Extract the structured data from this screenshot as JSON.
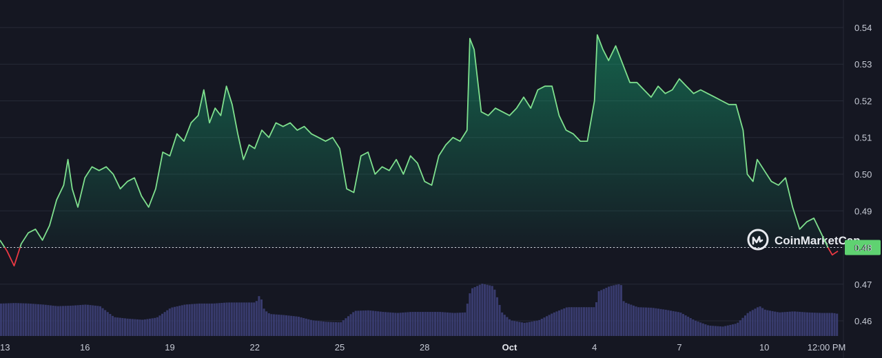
{
  "chart_data": {
    "type": "area",
    "colors": {
      "up": "#16c784",
      "line": "#7fe08e",
      "down": "#ea3943",
      "volume": "#3a3d72",
      "background": "#151722",
      "grid": "#262a37",
      "price_tag": "#5fd271"
    },
    "y_ticks": [
      0.46,
      0.47,
      0.48,
      0.49,
      0.5,
      0.51,
      0.52,
      0.53,
      0.54
    ],
    "y_tick_labels": [
      "0.46",
      "0.47",
      "0.48",
      "0.49",
      "0.50",
      "0.51",
      "0.52",
      "0.53",
      "0.54"
    ],
    "ylim": [
      0.4555,
      0.5475
    ],
    "xlim": [
      0,
      29.6
    ],
    "x_ticks": [
      {
        "t": 0.0,
        "label": "13"
      },
      {
        "t": 3.0,
        "label": "16"
      },
      {
        "t": 6.0,
        "label": "19"
      },
      {
        "t": 9.0,
        "label": "22"
      },
      {
        "t": 12.0,
        "label": "25"
      },
      {
        "t": 15.0,
        "label": "28"
      },
      {
        "t": 18.0,
        "label": "Oct",
        "bold": true
      },
      {
        "t": 21.0,
        "label": "4"
      },
      {
        "t": 24.0,
        "label": "7"
      },
      {
        "t": 27.0,
        "label": "10"
      },
      {
        "t": 29.2,
        "label": "12:00 PM"
      }
    ],
    "baseline": 0.48,
    "current_price_label": "0.48",
    "watermark": "CoinMarketCap",
    "price": [
      [
        0.0,
        0.482
      ],
      [
        0.25,
        0.479
      ],
      [
        0.5,
        0.475
      ],
      [
        0.75,
        0.481
      ],
      [
        1.0,
        0.484
      ],
      [
        1.25,
        0.485
      ],
      [
        1.5,
        0.482
      ],
      [
        1.75,
        0.486
      ],
      [
        2.0,
        0.493
      ],
      [
        2.25,
        0.497
      ],
      [
        2.4,
        0.504
      ],
      [
        2.55,
        0.496
      ],
      [
        2.75,
        0.491
      ],
      [
        3.0,
        0.499
      ],
      [
        3.25,
        0.502
      ],
      [
        3.5,
        0.501
      ],
      [
        3.75,
        0.502
      ],
      [
        4.0,
        0.5
      ],
      [
        4.25,
        0.496
      ],
      [
        4.5,
        0.498
      ],
      [
        4.75,
        0.499
      ],
      [
        5.0,
        0.494
      ],
      [
        5.25,
        0.491
      ],
      [
        5.5,
        0.496
      ],
      [
        5.75,
        0.506
      ],
      [
        6.0,
        0.505
      ],
      [
        6.25,
        0.511
      ],
      [
        6.5,
        0.509
      ],
      [
        6.75,
        0.514
      ],
      [
        7.0,
        0.516
      ],
      [
        7.2,
        0.523
      ],
      [
        7.4,
        0.514
      ],
      [
        7.6,
        0.518
      ],
      [
        7.8,
        0.516
      ],
      [
        8.0,
        0.524
      ],
      [
        8.2,
        0.519
      ],
      [
        8.4,
        0.511
      ],
      [
        8.6,
        0.504
      ],
      [
        8.8,
        0.508
      ],
      [
        9.0,
        0.507
      ],
      [
        9.25,
        0.512
      ],
      [
        9.5,
        0.51
      ],
      [
        9.75,
        0.514
      ],
      [
        10.0,
        0.513
      ],
      [
        10.25,
        0.514
      ],
      [
        10.5,
        0.512
      ],
      [
        10.75,
        0.513
      ],
      [
        11.0,
        0.511
      ],
      [
        11.25,
        0.51
      ],
      [
        11.5,
        0.509
      ],
      [
        11.75,
        0.51
      ],
      [
        12.0,
        0.507
      ],
      [
        12.25,
        0.496
      ],
      [
        12.5,
        0.495
      ],
      [
        12.75,
        0.505
      ],
      [
        13.0,
        0.506
      ],
      [
        13.25,
        0.5
      ],
      [
        13.5,
        0.502
      ],
      [
        13.75,
        0.501
      ],
      [
        14.0,
        0.504
      ],
      [
        14.25,
        0.5
      ],
      [
        14.5,
        0.505
      ],
      [
        14.75,
        0.503
      ],
      [
        15.0,
        0.498
      ],
      [
        15.25,
        0.497
      ],
      [
        15.5,
        0.505
      ],
      [
        15.75,
        0.508
      ],
      [
        16.0,
        0.51
      ],
      [
        16.25,
        0.509
      ],
      [
        16.5,
        0.512
      ],
      [
        16.6,
        0.537
      ],
      [
        16.75,
        0.534
      ],
      [
        17.0,
        0.517
      ],
      [
        17.25,
        0.516
      ],
      [
        17.5,
        0.518
      ],
      [
        17.75,
        0.517
      ],
      [
        18.0,
        0.516
      ],
      [
        18.25,
        0.518
      ],
      [
        18.5,
        0.521
      ],
      [
        18.75,
        0.518
      ],
      [
        19.0,
        0.523
      ],
      [
        19.25,
        0.524
      ],
      [
        19.5,
        0.524
      ],
      [
        19.75,
        0.516
      ],
      [
        20.0,
        0.512
      ],
      [
        20.25,
        0.511
      ],
      [
        20.5,
        0.509
      ],
      [
        20.75,
        0.509
      ],
      [
        21.0,
        0.52
      ],
      [
        21.1,
        0.538
      ],
      [
        21.3,
        0.534
      ],
      [
        21.5,
        0.531
      ],
      [
        21.75,
        0.535
      ],
      [
        22.0,
        0.53
      ],
      [
        22.25,
        0.525
      ],
      [
        22.5,
        0.525
      ],
      [
        22.75,
        0.523
      ],
      [
        23.0,
        0.521
      ],
      [
        23.25,
        0.524
      ],
      [
        23.5,
        0.522
      ],
      [
        23.75,
        0.523
      ],
      [
        24.0,
        0.526
      ],
      [
        24.25,
        0.524
      ],
      [
        24.5,
        0.522
      ],
      [
        24.75,
        0.523
      ],
      [
        25.0,
        0.522
      ],
      [
        25.25,
        0.521
      ],
      [
        25.5,
        0.52
      ],
      [
        25.75,
        0.519
      ],
      [
        26.0,
        0.519
      ],
      [
        26.25,
        0.512
      ],
      [
        26.4,
        0.5
      ],
      [
        26.6,
        0.498
      ],
      [
        26.75,
        0.504
      ],
      [
        27.0,
        0.501
      ],
      [
        27.25,
        0.498
      ],
      [
        27.5,
        0.497
      ],
      [
        27.75,
        0.499
      ],
      [
        28.0,
        0.491
      ],
      [
        28.25,
        0.485
      ],
      [
        28.5,
        0.487
      ],
      [
        28.75,
        0.488
      ],
      [
        29.0,
        0.484
      ],
      [
        29.25,
        0.48
      ],
      [
        29.4,
        0.478
      ],
      [
        29.6,
        0.479
      ]
    ],
    "volume": [
      [
        0.0,
        0.62
      ],
      [
        0.5,
        0.63
      ],
      [
        1.0,
        0.62
      ],
      [
        1.5,
        0.6
      ],
      [
        2.0,
        0.57
      ],
      [
        2.5,
        0.58
      ],
      [
        3.0,
        0.6
      ],
      [
        3.5,
        0.57
      ],
      [
        4.0,
        0.36
      ],
      [
        4.5,
        0.33
      ],
      [
        5.0,
        0.31
      ],
      [
        5.5,
        0.35
      ],
      [
        6.0,
        0.54
      ],
      [
        6.5,
        0.6
      ],
      [
        7.0,
        0.62
      ],
      [
        7.5,
        0.62
      ],
      [
        8.0,
        0.64
      ],
      [
        8.5,
        0.64
      ],
      [
        9.0,
        0.64
      ],
      [
        9.15,
        0.8
      ],
      [
        9.3,
        0.5
      ],
      [
        9.5,
        0.42
      ],
      [
        10.0,
        0.4
      ],
      [
        10.5,
        0.37
      ],
      [
        11.0,
        0.3
      ],
      [
        11.5,
        0.27
      ],
      [
        12.0,
        0.26
      ],
      [
        12.5,
        0.48
      ],
      [
        13.0,
        0.49
      ],
      [
        13.5,
        0.46
      ],
      [
        14.0,
        0.44
      ],
      [
        14.5,
        0.46
      ],
      [
        15.0,
        0.46
      ],
      [
        15.5,
        0.46
      ],
      [
        16.0,
        0.44
      ],
      [
        16.4,
        0.45
      ],
      [
        16.6,
        0.9
      ],
      [
        17.0,
        1.0
      ],
      [
        17.4,
        0.95
      ],
      [
        17.7,
        0.45
      ],
      [
        18.0,
        0.3
      ],
      [
        18.5,
        0.25
      ],
      [
        19.0,
        0.3
      ],
      [
        19.5,
        0.44
      ],
      [
        20.0,
        0.55
      ],
      [
        20.5,
        0.55
      ],
      [
        21.0,
        0.55
      ],
      [
        21.1,
        0.85
      ],
      [
        21.5,
        0.95
      ],
      [
        21.9,
        1.0
      ],
      [
        22.0,
        0.65
      ],
      [
        22.5,
        0.55
      ],
      [
        23.0,
        0.54
      ],
      [
        23.5,
        0.5
      ],
      [
        24.0,
        0.45
      ],
      [
        24.5,
        0.3
      ],
      [
        25.0,
        0.2
      ],
      [
        25.5,
        0.18
      ],
      [
        26.0,
        0.24
      ],
      [
        26.4,
        0.45
      ],
      [
        26.8,
        0.57
      ],
      [
        27.0,
        0.5
      ],
      [
        27.5,
        0.45
      ],
      [
        28.0,
        0.47
      ],
      [
        28.5,
        0.45
      ],
      [
        29.0,
        0.44
      ],
      [
        29.4,
        0.44
      ],
      [
        29.6,
        0.42
      ]
    ]
  }
}
